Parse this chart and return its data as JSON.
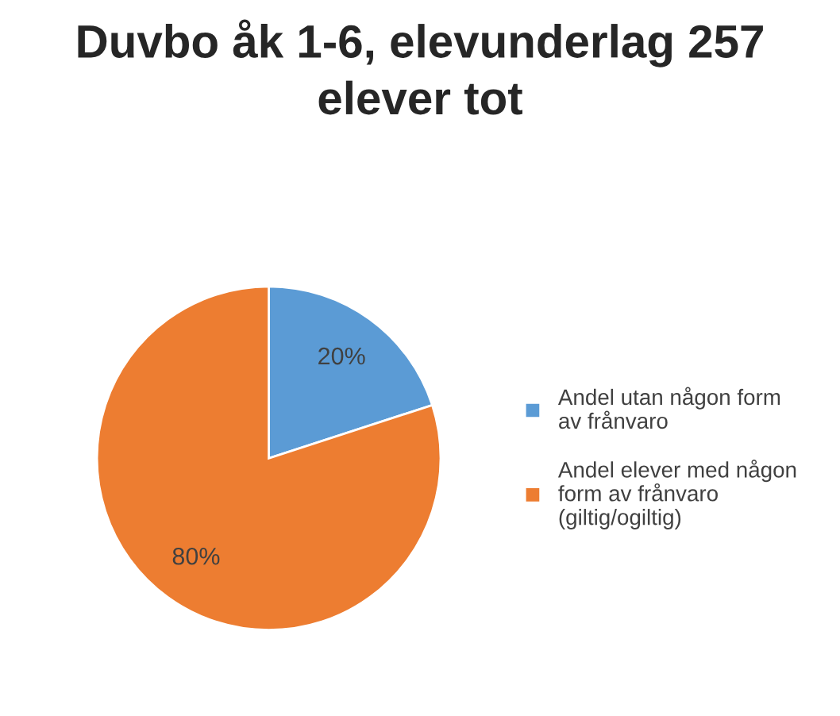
{
  "chart_data": {
    "type": "pie",
    "title": "Duvbo åk 1-6, elevunderlag 257 elever tot",
    "categories": [
      "Andel utan någon form av frånvaro",
      "Andel elever med någon form av frånvaro (giltig/ogiltig)"
    ],
    "values": [
      20,
      80
    ],
    "colors": [
      "#5b9bd5",
      "#ed7d31"
    ],
    "value_labels": [
      "20%",
      "80%"
    ],
    "legend": "right"
  }
}
